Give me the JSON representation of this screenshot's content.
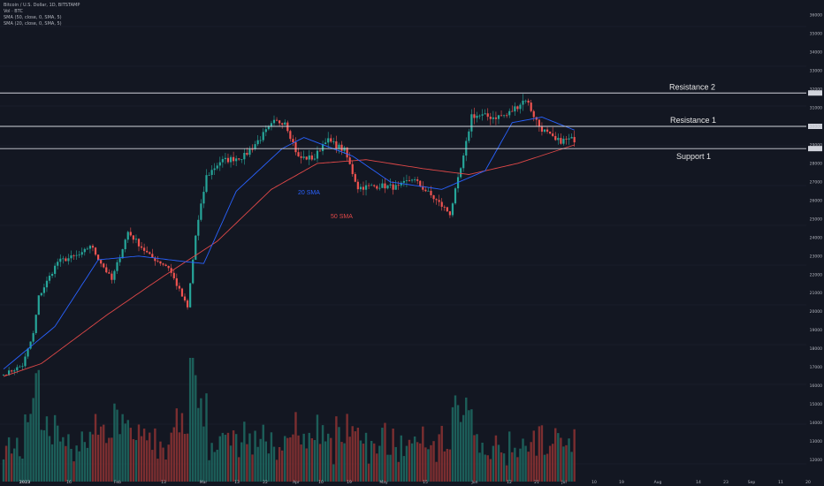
{
  "legend": {
    "title": "Bitcoin / U.S. Dollar, 1D, BITSTAMP",
    "vol": "Vol · BTC",
    "sma50": "SMA (50, close, 0, SMA, 5)",
    "sma20": "SMA (20, close, 0, SMA, 5)"
  },
  "colors": {
    "background": "#131722",
    "up": "#26a69a",
    "down": "#ef5350",
    "sma20": "#2962ff",
    "sma50": "#e04848",
    "levels": "#d1d4dc"
  },
  "chart_data": {
    "type": "candlestick",
    "currency": "USD",
    "levels": [
      {
        "label": "Resistance 2",
        "value": 31800
      },
      {
        "label": "Resistance 1",
        "value": 30000
      },
      {
        "label": "Support 1",
        "value": 28800
      }
    ],
    "series_labels": [
      {
        "label": "20 SMA"
      },
      {
        "label": "50 SMA"
      }
    ],
    "x_ticks": [
      "2023",
      "16",
      "Feb",
      "13",
      "Mar",
      "13",
      "22",
      "Apr",
      "10",
      "19",
      "May",
      "15",
      "Jun",
      "12",
      "21",
      "Jul",
      "10",
      "19",
      "Aug",
      "14",
      "23",
      "Sep",
      "11",
      "20"
    ],
    "y_ticks": [
      38000,
      37000,
      36000,
      35000,
      34000,
      33000,
      32000,
      31000,
      30000,
      29000,
      28000,
      27000,
      26000,
      25000,
      24000,
      23000,
      22000,
      21000,
      20000,
      19000,
      18000,
      17000,
      16000,
      15000,
      14000,
      13000,
      12000
    ],
    "price_path": [
      [
        "2023-01-01",
        16600
      ],
      [
        "2023-01-08",
        17100
      ],
      [
        "2023-01-12",
        18800
      ],
      [
        "2023-01-14",
        20800
      ],
      [
        "2023-01-21",
        22700
      ],
      [
        "2023-01-30",
        23100
      ],
      [
        "2023-02-02",
        23600
      ],
      [
        "2023-02-10",
        21700
      ],
      [
        "2023-02-16",
        24300
      ],
      [
        "2023-02-24",
        23000
      ],
      [
        "2023-03-03",
        22400
      ],
      [
        "2023-03-10",
        20200
      ],
      [
        "2023-03-13",
        24100
      ],
      [
        "2023-03-17",
        27300
      ],
      [
        "2023-03-22",
        28100
      ],
      [
        "2023-03-31",
        28400
      ],
      [
        "2023-04-11",
        30200
      ],
      [
        "2023-04-15",
        30300
      ],
      [
        "2023-04-20",
        28300
      ],
      [
        "2023-04-26",
        28300
      ],
      [
        "2023-04-30",
        29300
      ],
      [
        "2023-05-07",
        28700
      ],
      [
        "2023-05-12",
        26700
      ],
      [
        "2023-05-20",
        26800
      ],
      [
        "2023-05-27",
        26700
      ],
      [
        "2023-06-01",
        27200
      ],
      [
        "2023-06-07",
        26400
      ],
      [
        "2023-06-15",
        25300
      ],
      [
        "2023-06-20",
        28300
      ],
      [
        "2023-06-23",
        30600
      ],
      [
        "2023-07-01",
        30500
      ],
      [
        "2023-07-06",
        30600
      ],
      [
        "2023-07-13",
        31500
      ],
      [
        "2023-07-18",
        30000
      ],
      [
        "2023-07-24",
        29200
      ],
      [
        "2023-07-31",
        29300
      ]
    ],
    "sma20_path": [
      [
        "2023-01-01",
        16900
      ],
      [
        "2023-01-20",
        19200
      ],
      [
        "2023-02-05",
        22800
      ],
      [
        "2023-02-20",
        23000
      ],
      [
        "2023-03-09",
        22700
      ],
      [
        "2023-03-16",
        22600
      ],
      [
        "2023-03-28",
        26500
      ],
      [
        "2023-04-14",
        28800
      ],
      [
        "2023-04-22",
        29400
      ],
      [
        "2023-05-10",
        28400
      ],
      [
        "2023-05-24",
        27000
      ],
      [
        "2023-06-12",
        26600
      ],
      [
        "2023-06-28",
        27600
      ],
      [
        "2023-07-08",
        30200
      ],
      [
        "2023-07-19",
        30500
      ],
      [
        "2023-07-31",
        29800
      ]
    ],
    "sma50_path": [
      [
        "2023-01-01",
        16500
      ],
      [
        "2023-01-15",
        17200
      ],
      [
        "2023-02-08",
        19800
      ],
      [
        "2023-03-01",
        21900
      ],
      [
        "2023-03-21",
        23800
      ],
      [
        "2023-04-10",
        26600
      ],
      [
        "2023-04-27",
        28000
      ],
      [
        "2023-05-15",
        28200
      ],
      [
        "2023-06-06",
        27700
      ],
      [
        "2023-06-22",
        27400
      ],
      [
        "2023-07-10",
        28000
      ],
      [
        "2023-07-31",
        29000
      ]
    ]
  }
}
